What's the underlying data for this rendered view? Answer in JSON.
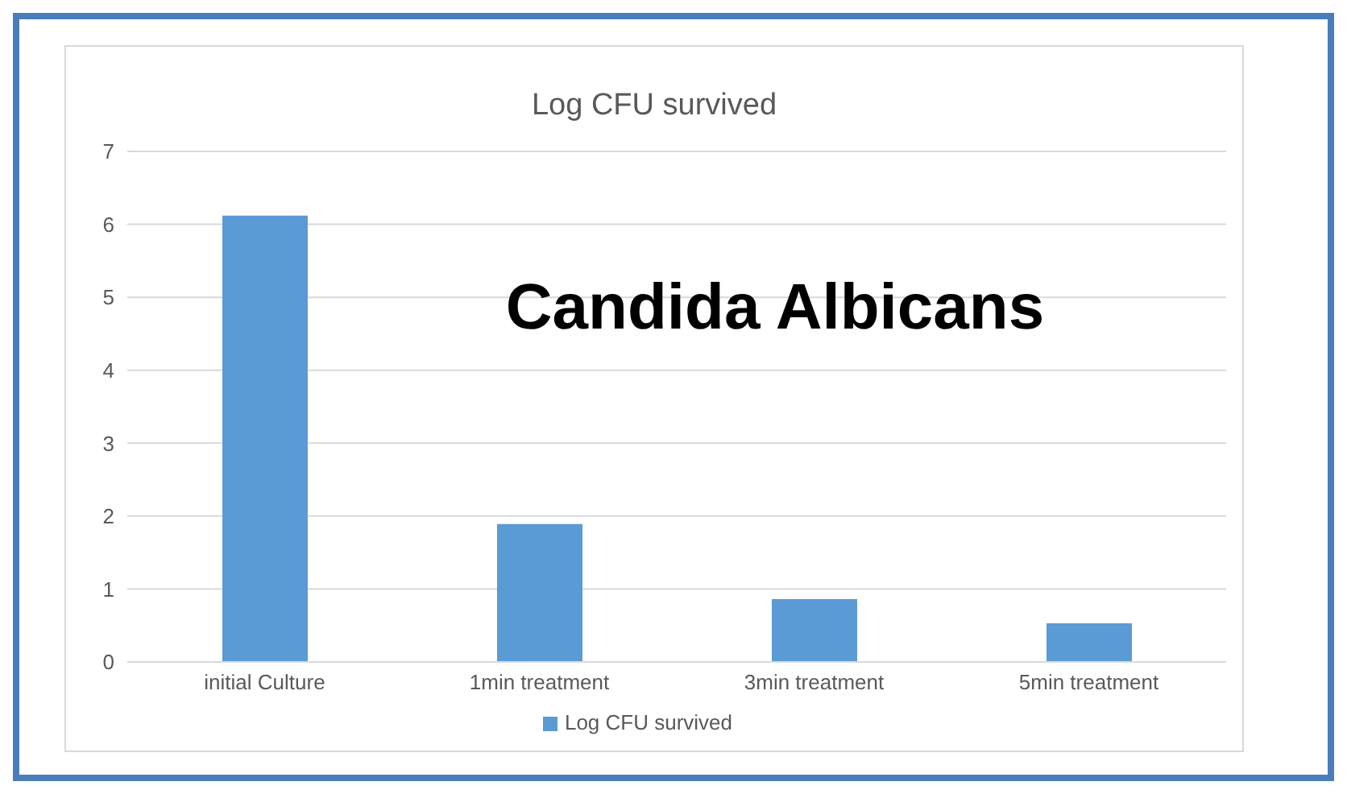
{
  "chart_data": {
    "type": "bar",
    "title": "Log CFU survived",
    "categories": [
      "initial Culture",
      "1min treatment",
      "3min treatment",
      "5min treatment"
    ],
    "series": [
      {
        "name": "Log CFU survived",
        "color": "#5b9bd5",
        "values": [
          6.12,
          1.89,
          0.86,
          0.53
        ]
      }
    ],
    "ylim": [
      0,
      7
    ],
    "yticks": [
      0,
      1,
      2,
      3,
      4,
      5,
      6,
      7
    ],
    "grid": "y",
    "legend": "bottom",
    "annotations": [
      "Candida Albicans"
    ]
  }
}
